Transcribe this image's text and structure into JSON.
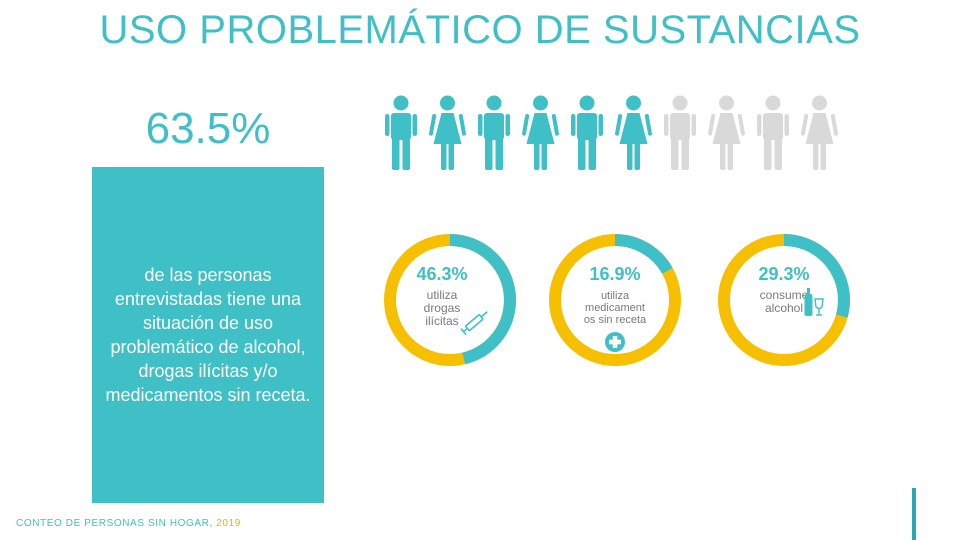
{
  "title": "USO PROBLEMÁTICO DE SUSTANCIAS",
  "stat": {
    "value": "63.5%",
    "description": "de las personas entrevistadas tiene una situación de uso problemático de alcohol, drogas ilícitas y/o medicamentos sin receta."
  },
  "footer": {
    "source": "CONTEO DE PERSONAS SIN HOGAR,",
    "year": "2019"
  },
  "colors": {
    "teal": "#3fbfc6",
    "yellow": "#f6c000",
    "gray": "#d9d9d9",
    "dark_teal": "#2aa9b1"
  },
  "chart_data": [
    {
      "type": "pictograph",
      "total": 10,
      "filled": 6,
      "icon_names": [
        "man-icon",
        "woman-icon",
        "man-icon",
        "woman-icon",
        "man-icon",
        "woman-icon",
        "man-icon",
        "woman-icon",
        "man-icon",
        "woman-icon"
      ]
    },
    {
      "type": "pie",
      "donuts": [
        {
          "percent": 46.3,
          "label": "46.3%",
          "lines": [
            "utiliza",
            "drogas",
            "ilícitas"
          ],
          "icon": "syringe-icon"
        },
        {
          "percent": 16.9,
          "label": "16.9%",
          "lines": [
            "utiliza",
            "medicament",
            "os sin receta"
          ],
          "icon": "medical-cross-icon"
        },
        {
          "percent": 29.3,
          "label": "29.3%",
          "lines": [
            "consume",
            "alcohol"
          ],
          "icon": "bottle-glass-icon"
        }
      ]
    }
  ]
}
